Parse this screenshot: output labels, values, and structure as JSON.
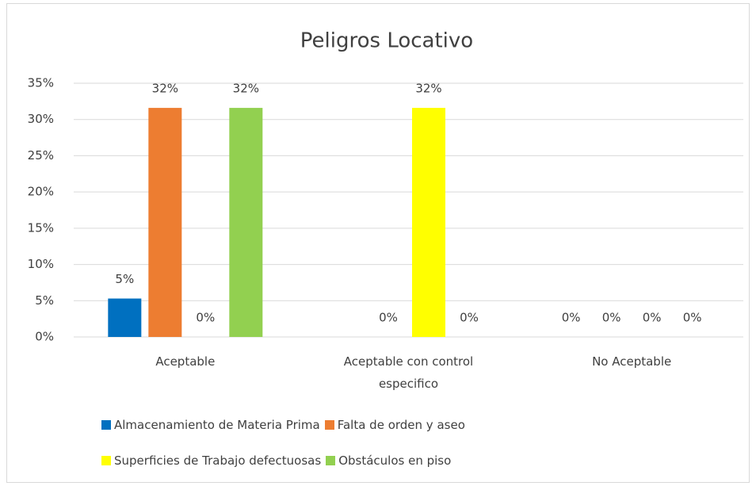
{
  "chart_data": {
    "type": "bar",
    "title": "Peligros Locativo",
    "categories": [
      "Aceptable",
      "Aceptable con control especifico",
      "No Aceptable"
    ],
    "series": [
      {
        "name": "Almacenamiento de Materia Prima",
        "color": "#0070c0",
        "values": [
          5.3,
          0,
          0
        ],
        "value_labels": [
          "5%",
          null,
          "0%"
        ]
      },
      {
        "name": "Falta de orden y aseo",
        "color": "#ed7d31",
        "values": [
          31.6,
          0,
          0
        ],
        "value_labels": [
          "32%",
          "0%",
          "0%"
        ]
      },
      {
        "name": "Superficies de Trabajo defectuosas",
        "color": "#ffff00",
        "values": [
          0,
          31.6,
          0
        ],
        "value_labels": [
          "0%",
          "32%",
          "0%"
        ]
      },
      {
        "name": "Obstáculos en piso",
        "color": "#92d050",
        "values": [
          31.6,
          0,
          0
        ],
        "value_labels": [
          "32%",
          "0%",
          "0%"
        ]
      }
    ],
    "ylim": [
      0,
      35
    ],
    "yticks": [
      {
        "value": 0,
        "label": "0%"
      },
      {
        "value": 5,
        "label": "5%"
      },
      {
        "value": 10,
        "label": "10%"
      },
      {
        "value": 15,
        "label": "15%"
      },
      {
        "value": 20,
        "label": "20%"
      },
      {
        "value": 25,
        "label": "25%"
      },
      {
        "value": 30,
        "label": "30%"
      },
      {
        "value": 35,
        "label": "35%"
      }
    ],
    "grid": true
  }
}
